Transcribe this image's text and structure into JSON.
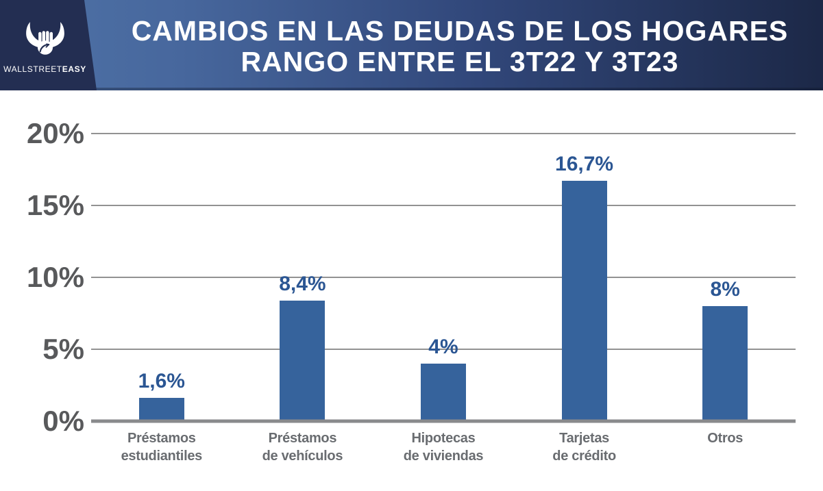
{
  "brand": {
    "logo_icon": "bull-fist-logo",
    "name_part1": "WALLSTREET",
    "name_part2": "EASY"
  },
  "header": {
    "title_line1": "CAMBIOS EN LAS DEUDAS DE LOS HOGARES",
    "title_line2": "RANGO ENTRE EL 3T22 Y 3T23",
    "gradient_left_color": "#4f73a7",
    "gradient_right_color": "#1c2847",
    "logo_block_color": "#232e52",
    "title_color": "#ffffff"
  },
  "chart_data": {
    "type": "bar",
    "title": "CAMBIOS EN LAS DEUDAS DE LOS HOGARES RANGO ENTRE EL 3T22 Y 3T23",
    "categories": [
      [
        "Préstamos",
        "estudiantiles"
      ],
      [
        "Préstamos",
        "de vehículos"
      ],
      [
        "Hipotecas",
        "de viviendas"
      ],
      [
        "Tarjetas",
        "de crédito"
      ],
      [
        "Otros"
      ]
    ],
    "values": [
      1.6,
      8.4,
      4,
      16.7,
      8
    ],
    "value_labels": [
      "1,6%",
      "8,4%",
      "4%",
      "16,7%",
      "8%"
    ],
    "y_ticks": [
      {
        "value": 20,
        "label": "20%"
      },
      {
        "value": 15,
        "label": "15%"
      },
      {
        "value": 10,
        "label": "10%"
      },
      {
        "value": 5,
        "label": "5%"
      },
      {
        "value": 0,
        "label": "0%"
      }
    ],
    "ylim": [
      0,
      20
    ],
    "xlabel": "",
    "ylabel": "",
    "grid": true,
    "legend": false,
    "bar_color": "#36639c",
    "value_label_color": "#2b5693",
    "y_tick_color": "#58595b",
    "category_label_color": "#696c70",
    "gridline_color": "#929292",
    "baseline_color": "#898a8c"
  }
}
